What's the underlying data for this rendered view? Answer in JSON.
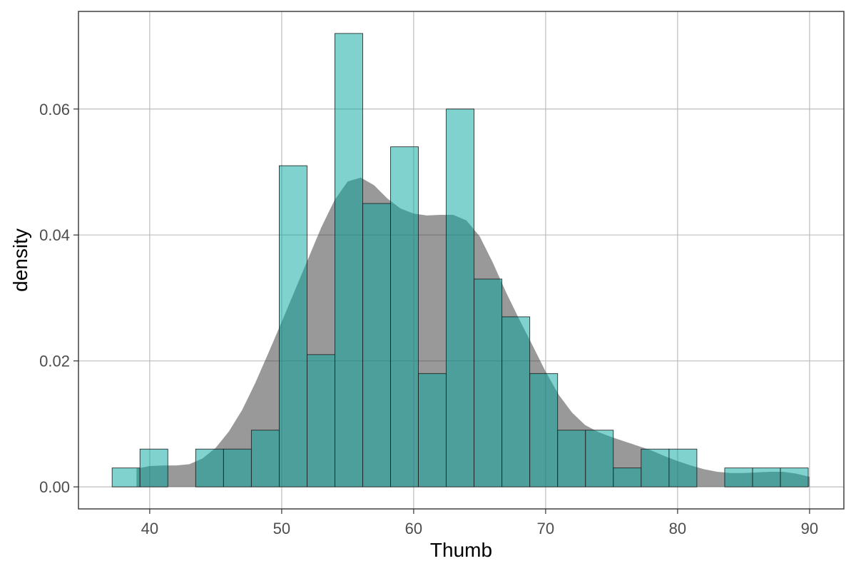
{
  "chart_data": {
    "type": "bar",
    "subtype": "histogram_with_density",
    "xlabel": "Thumb",
    "ylabel": "density",
    "xlim": [
      34.6,
      92.6
    ],
    "ylim": [
      -0.0035,
      0.0755
    ],
    "x_ticks": [
      40,
      50,
      60,
      70,
      80,
      90
    ],
    "y_ticks": [
      0.0,
      0.02,
      0.04,
      0.06
    ],
    "x_tick_labels": [
      "40",
      "50",
      "60",
      "70",
      "80",
      "90"
    ],
    "y_tick_labels": [
      "0.00",
      "0.02",
      "0.04",
      "0.06"
    ],
    "grid": true,
    "bin_width": 2.11,
    "bins_start": [
      37.15,
      39.26,
      41.37,
      43.48,
      45.59,
      47.7,
      49.81,
      51.92,
      54.03,
      56.14,
      58.25,
      60.36,
      62.47,
      64.58,
      66.69,
      68.8,
      70.91,
      73.02,
      75.13,
      77.24,
      79.35,
      81.46,
      83.57,
      85.68,
      87.79
    ],
    "histogram_density": [
      0.003,
      0.006,
      0.0,
      0.006,
      0.006,
      0.009,
      0.051,
      0.021,
      0.072,
      0.045,
      0.054,
      0.018,
      0.06,
      0.033,
      0.027,
      0.018,
      0.009,
      0.009,
      0.003,
      0.006,
      0.006,
      0.0,
      0.003,
      0.003,
      0.003
    ],
    "density_curve": {
      "x": [
        39.0,
        40.0,
        41.0,
        42.0,
        43.0,
        44.0,
        45.0,
        46.0,
        47.0,
        48.0,
        49.0,
        50.0,
        51.0,
        52.0,
        53.0,
        54.0,
        55.0,
        56.0,
        57.0,
        58.0,
        59.0,
        60.0,
        61.0,
        62.0,
        63.0,
        64.0,
        65.0,
        66.0,
        67.0,
        68.0,
        69.0,
        70.0,
        71.0,
        72.0,
        73.0,
        74.0,
        75.0,
        76.0,
        77.0,
        78.0,
        79.0,
        80.0,
        81.0,
        82.0,
        83.0,
        84.0,
        85.0,
        86.0,
        87.0,
        88.0,
        89.0,
        90.0
      ],
      "y": [
        0.0029,
        0.0033,
        0.0034,
        0.0034,
        0.0036,
        0.0045,
        0.0062,
        0.0088,
        0.0122,
        0.0165,
        0.0213,
        0.0262,
        0.0312,
        0.0362,
        0.0412,
        0.0455,
        0.0485,
        0.0491,
        0.0479,
        0.0458,
        0.0442,
        0.0434,
        0.0431,
        0.0432,
        0.0432,
        0.0423,
        0.0398,
        0.0356,
        0.0309,
        0.0266,
        0.0225,
        0.0183,
        0.0146,
        0.0118,
        0.0098,
        0.0087,
        0.0079,
        0.0072,
        0.0065,
        0.0058,
        0.0049,
        0.0041,
        0.0034,
        0.0028,
        0.0024,
        0.0022,
        0.0022,
        0.0023,
        0.0024,
        0.0024,
        0.0021,
        0.0016
      ]
    },
    "colors": {
      "histogram_fill": "#00a69c",
      "histogram_fill_opacity": 0.5,
      "density_fill": "#333333",
      "density_fill_opacity": 0.5,
      "bar_outline": "#1a1a1a"
    }
  }
}
